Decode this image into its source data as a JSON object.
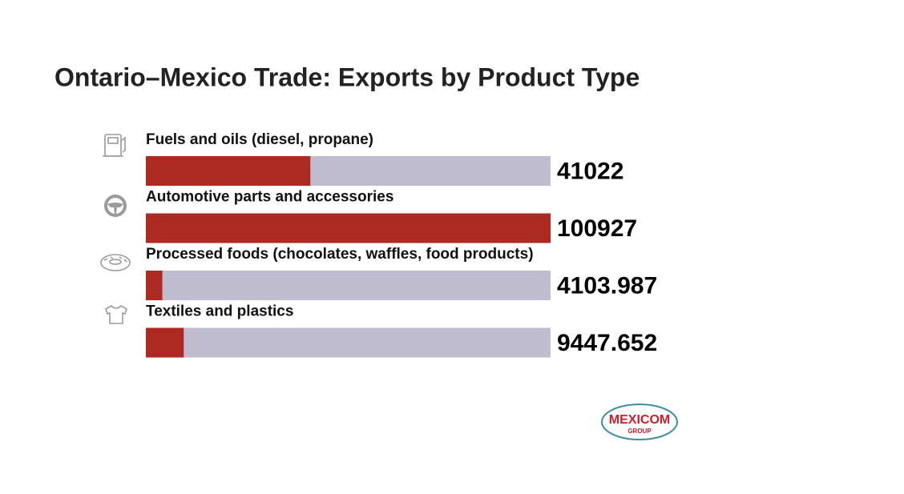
{
  "chart_data": {
    "type": "bar",
    "orientation": "horizontal",
    "title": "Ontario–Mexico Trade: Exports by Product Type",
    "categories": [
      "Fuels and oils (diesel, propane)",
      "Automotive parts and accessories",
      "Processed foods (chocolates, waffles, food products)",
      "Textiles and plastics"
    ],
    "values": [
      41022,
      100927,
      4103.987,
      9447.652
    ],
    "color": "#ad2a22",
    "track_color": "#c0bccf"
  },
  "logo": {
    "name": "MEXICOM",
    "subtitle": "GROUP"
  }
}
